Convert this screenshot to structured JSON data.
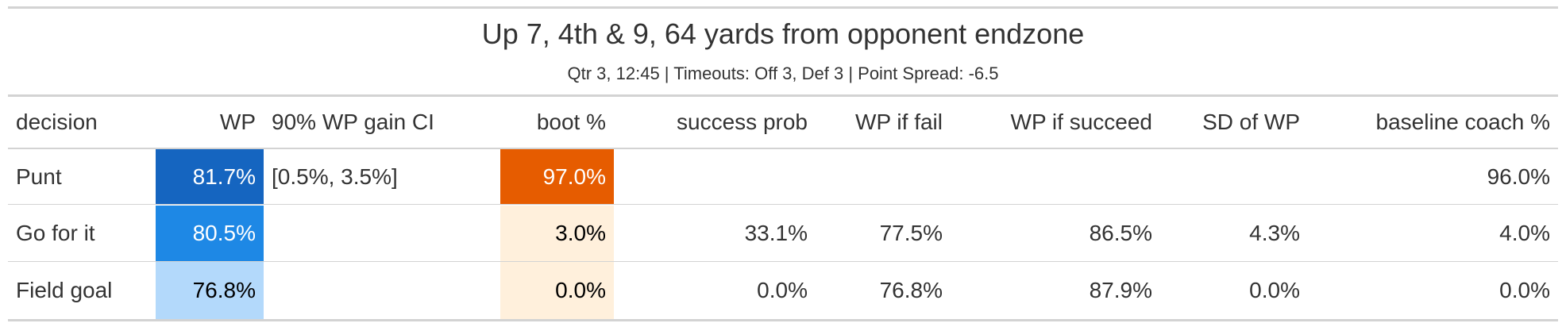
{
  "title": "Up 7, 4th & 9, 64 yards from opponent endzone",
  "subtitle": "Qtr 3, 12:45 | Timeouts: Off 3, Def 3 | Point Spread: -6.5",
  "columns": {
    "decision": "decision",
    "wp": "WP",
    "ci": "90% WP gain CI",
    "boot": "boot %",
    "success": "success prob",
    "fail": "WP if fail",
    "succeed": "WP if succeed",
    "sd": "SD of WP",
    "baseline": "baseline coach %"
  },
  "rows": [
    {
      "decision": "Punt",
      "wp": "81.7%",
      "ci": "[0.5%, 3.5%]",
      "boot": "97.0%",
      "success": "",
      "fail": "",
      "succeed": "",
      "sd": "",
      "baseline": "96.0%",
      "wp_bg": "#1565c0",
      "wp_fg": "#ffffff",
      "boot_bg": "#e65c00",
      "boot_fg": "#ffffff"
    },
    {
      "decision": "Go for it",
      "wp": "80.5%",
      "ci": "",
      "boot": "3.0%",
      "success": "33.1%",
      "fail": "77.5%",
      "succeed": "86.5%",
      "sd": "4.3%",
      "baseline": "4.0%",
      "wp_bg": "#1e88e5",
      "wp_fg": "#ffffff",
      "boot_bg": "#fff0dc",
      "boot_fg": "#000000"
    },
    {
      "decision": "Field goal",
      "wp": "76.8%",
      "ci": "",
      "boot": "0.0%",
      "success": "0.0%",
      "fail": "76.8%",
      "succeed": "87.9%",
      "sd": "0.0%",
      "baseline": "0.0%",
      "wp_bg": "#b3d9fb",
      "wp_fg": "#000000",
      "boot_bg": "#fff0dc",
      "boot_fg": "#000000"
    }
  ]
}
